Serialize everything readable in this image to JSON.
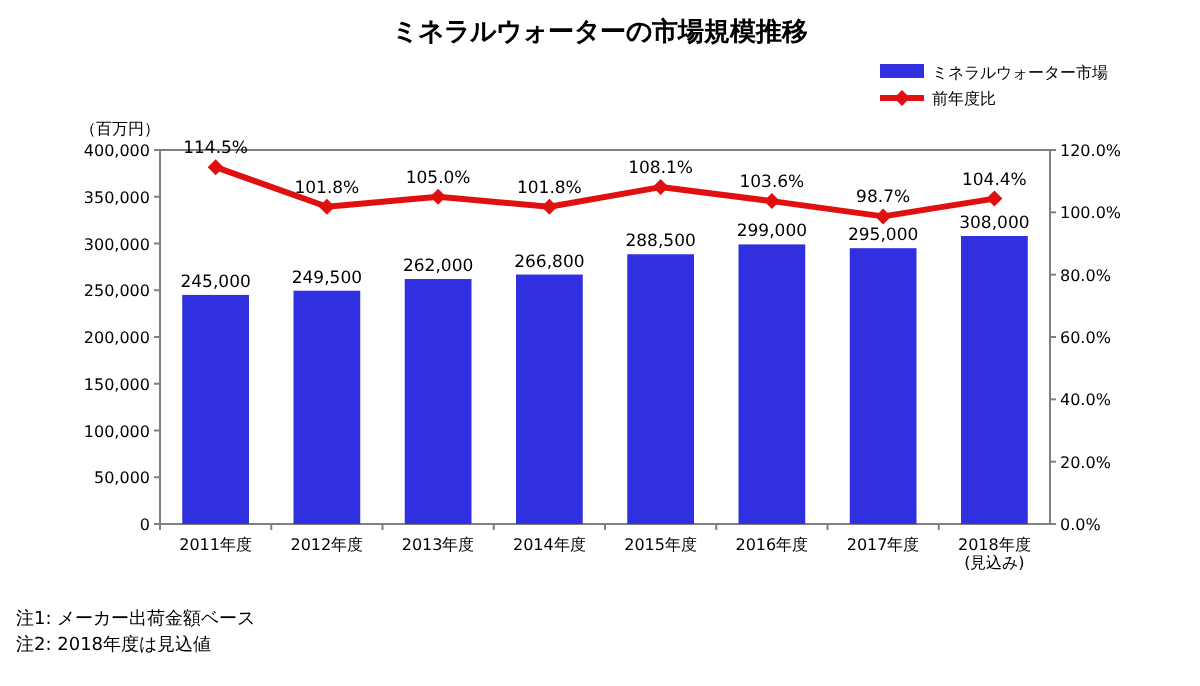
{
  "chart_data": {
    "type": "bar",
    "title": "ミネラルウォーターの市場規模推移",
    "ylabel": "（百万円）",
    "categories": [
      "2011年度",
      "2012年度",
      "2013年度",
      "2014年度",
      "2015年度",
      "2016年度",
      "2017年度",
      "2018年度\n(見込み)"
    ],
    "series": [
      {
        "name": "ミネラルウォーター市場",
        "color": "#3030e0",
        "values": [
          245000,
          249500,
          262000,
          266800,
          288500,
          299000,
          295000,
          308000
        ],
        "value_labels": [
          "245,000",
          "249,500",
          "262,000",
          "266,800",
          "288,500",
          "299,000",
          "295,000",
          "308,000"
        ]
      },
      {
        "name": "前年度比",
        "type": "line",
        "axis": "y2",
        "color": "#e01010",
        "marker": "diamond",
        "values": [
          114.5,
          101.8,
          105.0,
          101.8,
          108.1,
          103.6,
          98.7,
          104.4
        ],
        "value_labels": [
          "114.5%",
          "101.8%",
          "105.0%",
          "101.8%",
          "108.1%",
          "103.6%",
          "98.7%",
          "104.4%"
        ]
      }
    ],
    "ylim": [
      0,
      400000
    ],
    "yticks": [
      {
        "value": 0,
        "label": "0"
      },
      {
        "value": 50000,
        "label": "50,000"
      },
      {
        "value": 100000,
        "label": "100,000"
      },
      {
        "value": 150000,
        "label": "150,000"
      },
      {
        "value": 200000,
        "label": "200,000"
      },
      {
        "value": 250000,
        "label": "250,000"
      },
      {
        "value": 300000,
        "label": "300,000"
      },
      {
        "value": 350000,
        "label": "350,000"
      },
      {
        "value": 400000,
        "label": "400,000"
      }
    ],
    "y2lim": [
      0,
      120
    ],
    "y2ticks": [
      {
        "value": 0,
        "label": "0.0%"
      },
      {
        "value": 20,
        "label": "20.0%"
      },
      {
        "value": 40,
        "label": "40.0%"
      },
      {
        "value": 60,
        "label": "60.0%"
      },
      {
        "value": 80,
        "label": "80.0%"
      },
      {
        "value": 100,
        "label": "100.0%"
      },
      {
        "value": 120,
        "label": "120.0%"
      }
    ],
    "legend": "top right",
    "annotations": [
      "注1: メーカー出荷金額ベース",
      "注2: 2018年度は見込値"
    ]
  }
}
